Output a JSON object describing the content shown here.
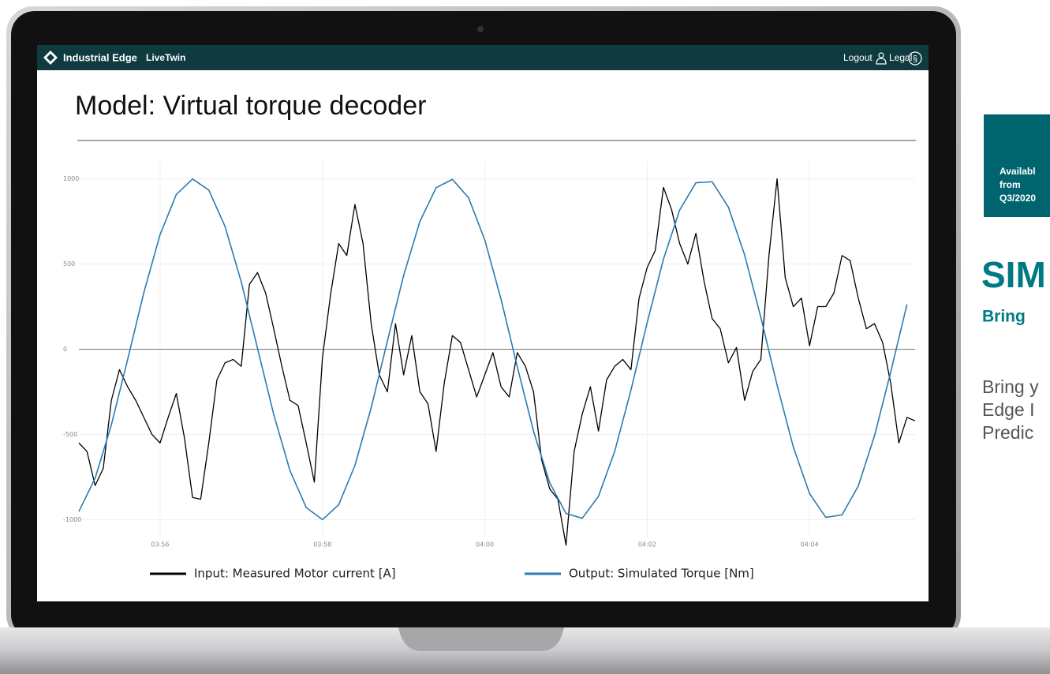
{
  "header": {
    "brand": "Industrial Edge",
    "app": "LiveTwin",
    "logout": "Logout",
    "legal": "Legal"
  },
  "title": "Model: Virtual torque decoder",
  "chart_data": {
    "type": "line",
    "xlim": [
      235.0,
      245.3
    ],
    "xticks": [
      {
        "value": 236,
        "label": "03:56"
      },
      {
        "value": 238,
        "label": "03:58"
      },
      {
        "value": 240,
        "label": "04:00"
      },
      {
        "value": 242,
        "label": "04:02"
      },
      {
        "value": 244,
        "label": "04:04"
      }
    ],
    "ylim": [
      -1100,
      1100
    ],
    "yticks": [
      -1000,
      -500,
      0,
      500,
      1000
    ],
    "grid": true,
    "series": [
      {
        "name": "Input: Measured Motor current [A]",
        "color": "#000000",
        "x": [
          235.0,
          235.1,
          235.2,
          235.3,
          235.4,
          235.5,
          235.6,
          235.7,
          235.8,
          235.9,
          236.0,
          236.1,
          236.2,
          236.3,
          236.4,
          236.5,
          236.6,
          236.7,
          236.8,
          236.9,
          237.0,
          237.1,
          237.2,
          237.3,
          237.4,
          237.5,
          237.6,
          237.7,
          237.8,
          237.9,
          238.0,
          238.1,
          238.2,
          238.3,
          238.4,
          238.5,
          238.6,
          238.7,
          238.8,
          238.9,
          239.0,
          239.1,
          239.2,
          239.3,
          239.4,
          239.5,
          239.6,
          239.7,
          239.8,
          239.9,
          240.0,
          240.1,
          240.2,
          240.3,
          240.4,
          240.5,
          240.6,
          240.7,
          240.8,
          240.9,
          241.0,
          241.1,
          241.2,
          241.3,
          241.4,
          241.5,
          241.6,
          241.7,
          241.8,
          241.9,
          242.0,
          242.1,
          242.2,
          242.3,
          242.4,
          242.5,
          242.6,
          242.7,
          242.8,
          242.9,
          243.0,
          243.1,
          243.2,
          243.3,
          243.4,
          243.5,
          243.6,
          243.7,
          243.8,
          243.9,
          244.0,
          244.1,
          244.2,
          244.3,
          244.4,
          244.5,
          244.6,
          244.7,
          244.8,
          244.9,
          245.0,
          245.1,
          245.2,
          245.3
        ],
        "values": [
          -550,
          -600,
          -800,
          -700,
          -300,
          -120,
          -220,
          -300,
          -400,
          -500,
          -550,
          -400,
          -260,
          -520,
          -870,
          -880,
          -550,
          -180,
          -80,
          -60,
          -100,
          380,
          450,
          330,
          120,
          -100,
          -300,
          -330,
          -550,
          -780,
          -50,
          320,
          620,
          550,
          850,
          620,
          150,
          -150,
          -250,
          150,
          -150,
          80,
          -250,
          -320,
          -600,
          -200,
          80,
          40,
          -120,
          -280,
          -150,
          -20,
          -220,
          -280,
          -20,
          -100,
          -250,
          -650,
          -820,
          -880,
          -1150,
          -600,
          -380,
          -220,
          -480,
          -180,
          -100,
          -60,
          -120,
          300,
          480,
          580,
          950,
          820,
          620,
          500,
          680,
          400,
          180,
          120,
          -80,
          10,
          -300,
          -130,
          -60,
          550,
          1000,
          420,
          250,
          300,
          20,
          250,
          250,
          330,
          550,
          520,
          300,
          120,
          150,
          40,
          -200,
          -550,
          -400,
          -420
        ]
      },
      {
        "name": "Output: Simulated Torque [Nm]",
        "color": "#2b7bb0",
        "x": [
          235.0,
          235.2,
          235.4,
          235.6,
          235.8,
          236.0,
          236.2,
          236.4,
          236.6,
          236.8,
          237.0,
          237.2,
          237.4,
          237.6,
          237.8,
          238.0,
          238.2,
          238.4,
          238.6,
          238.8,
          239.0,
          239.2,
          239.4,
          239.6,
          239.8,
          240.0,
          240.2,
          240.4,
          240.6,
          240.8,
          241.0,
          241.2,
          241.4,
          241.6,
          241.8,
          242.0,
          242.2,
          242.4,
          242.6,
          242.8,
          243.0,
          243.2,
          243.4,
          243.6,
          243.8,
          244.0,
          244.2,
          244.4,
          244.6,
          244.8,
          245.0,
          245.2
        ],
        "values": [
          -952,
          -757,
          -444,
          -61,
          332,
          673,
          908,
          999,
          934,
          721,
          395,
          6,
          -383,
          -712,
          -929,
          -1000,
          -913,
          -682,
          -344,
          48,
          433,
          749,
          948,
          997,
          889,
          641,
          293,
          -102,
          -481,
          -784,
          -964,
          -992,
          -863,
          -599,
          -240,
          156,
          528,
          817,
          977,
          983,
          834,
          554,
          187,
          -210,
          -574,
          -847,
          -987,
          -972,
          -803,
          -508,
          -133,
          263
        ]
      }
    ]
  },
  "side": {
    "badge": [
      "Availabl",
      "from",
      "Q3/2020"
    ],
    "heading": "SIM",
    "subheading": "Bring",
    "lines": [
      "Bring y",
      "Edge I",
      "Predic"
    ]
  }
}
